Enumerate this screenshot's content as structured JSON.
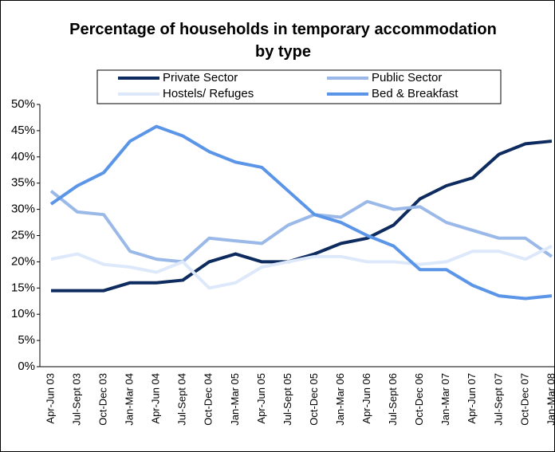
{
  "chart_data": {
    "type": "line",
    "title": "Percentage of households in temporary accommodation by type",
    "categories": [
      "Apr-Jun 03",
      "Jul-Sept 03",
      "Oct-Dec 03",
      "Jan-Mar 04",
      "Apr-Jun 04",
      "Jul-Sept 04",
      "Oct-Dec 04",
      "Jan-Mar 05",
      "Apr-Jun 05",
      "Jul-Sept 05",
      "Oct-Dec 05",
      "Jan-Mar 06",
      "Apr-Jun 06",
      "Jul-Sept 06",
      "Oct-Dec 06",
      "Jan-Mar 07",
      "Apr-Jun 07",
      "Jul-Sept 07",
      "Oct-Dec 07",
      "Jan-Mar 08"
    ],
    "series": [
      {
        "name": "Private Sector",
        "color": "#0d2b5e",
        "values": [
          14.5,
          14.5,
          14.5,
          16,
          16,
          16.5,
          20,
          21.5,
          20,
          20,
          21.5,
          23.5,
          24.5,
          27,
          32,
          34.5,
          36,
          40.5,
          42.5,
          43
        ]
      },
      {
        "name": "Public Sector",
        "color": "#9ab9e8",
        "values": [
          33.5,
          29.5,
          29,
          22,
          20.5,
          20,
          24.5,
          24,
          23.5,
          27,
          29,
          28.5,
          31.5,
          30,
          30.5,
          27.5,
          26,
          24.5,
          24.5,
          21
        ]
      },
      {
        "name": "Hostels/ Refuges",
        "color": "#dde9fb",
        "values": [
          20.5,
          21.5,
          19.5,
          19,
          18,
          20,
          15,
          16,
          19,
          20,
          21,
          21,
          20,
          20,
          19.5,
          20,
          22,
          22,
          20.5,
          23
        ]
      },
      {
        "name": "Bed & Breakfast",
        "color": "#5b95e8",
        "values": [
          31,
          34.5,
          37,
          43,
          45.8,
          44,
          41,
          39,
          38,
          33.5,
          29,
          27.5,
          25,
          23,
          18.5,
          18.5,
          15.5,
          13.5,
          13,
          13.5
        ]
      }
    ],
    "ylim": [
      0,
      50
    ],
    "yticks": [
      {
        "value": 0,
        "label": "0%"
      },
      {
        "value": 5,
        "label": "5%"
      },
      {
        "value": 10,
        "label": "10%"
      },
      {
        "value": 15,
        "label": "15%"
      },
      {
        "value": 20,
        "label": "20%"
      },
      {
        "value": 25,
        "label": "25%"
      },
      {
        "value": 30,
        "label": "30%"
      },
      {
        "value": 35,
        "label": "35%"
      },
      {
        "value": 40,
        "label": "40%"
      },
      {
        "value": 45,
        "label": "45%"
      },
      {
        "value": 50,
        "label": "50%"
      }
    ],
    "grid": false
  }
}
